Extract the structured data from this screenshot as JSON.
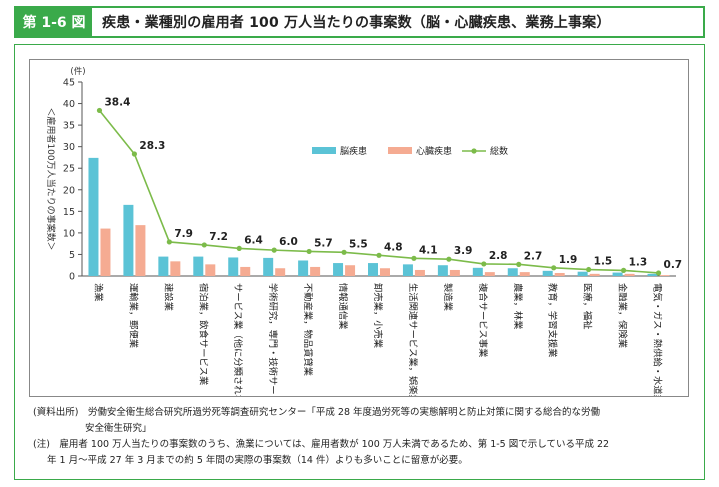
{
  "header": {
    "figure_number": "第 1-6 図",
    "title": "疾患・業種別の雇用者 100 万人当たりの事案数（脳・心臓疾患、業務上事案）"
  },
  "colors": {
    "accent": "#3aaa4a",
    "brain": "#5bc3d6",
    "heart": "#f5ab92",
    "total": "#7cbb4a"
  },
  "chart_data": {
    "type": "bar",
    "unit_label": "(件)",
    "ylabel": "＜雇用者100万人当たりの事案数＞",
    "ylim": [
      0,
      45
    ],
    "yticks": [
      0,
      5,
      10,
      15,
      20,
      25,
      30,
      35,
      40,
      45
    ],
    "grid": false,
    "legend_position": "top-center",
    "categories": [
      "漁業",
      "運輸業，郵便業",
      "建設業",
      "宿泊業，飲食サービス業",
      "サービス業（他に分類されないもの）",
      "学術研究，専門・技術サービス業",
      "不動産業，物品賃貸業",
      "情報通信業",
      "卸売業，小売業",
      "生活関連サービス業，娯楽業",
      "製造業",
      "複合サービス事業",
      "農業，林業",
      "教育，学習支援業",
      "医療，福祉",
      "金融業，保険業",
      "電気・ガス・熱供給・水道業"
    ],
    "series": [
      {
        "name": "脳疾患",
        "type": "bar",
        "values": [
          27.4,
          16.5,
          4.5,
          4.5,
          4.3,
          4.2,
          3.6,
          3.0,
          3.0,
          2.7,
          2.5,
          1.9,
          1.8,
          1.2,
          1.0,
          0.8,
          0.5
        ]
      },
      {
        "name": "心臓疾患",
        "type": "bar",
        "values": [
          11.0,
          11.8,
          3.4,
          2.7,
          2.1,
          1.8,
          2.1,
          2.5,
          1.8,
          1.4,
          1.4,
          0.9,
          0.9,
          0.7,
          0.5,
          0.5,
          0.2
        ]
      },
      {
        "name": "総数",
        "type": "line",
        "values": [
          38.4,
          28.3,
          7.9,
          7.2,
          6.4,
          6.0,
          5.7,
          5.5,
          4.8,
          4.1,
          3.9,
          2.8,
          2.7,
          1.9,
          1.5,
          1.3,
          0.7
        ]
      }
    ],
    "total_labels": [
      "38.4",
      "28.3",
      "7.9",
      "7.2",
      "6.4",
      "6.0",
      "5.7",
      "5.5",
      "4.8",
      "4.1",
      "3.9",
      "2.8",
      "2.7",
      "1.9",
      "1.5",
      "1.3",
      "0.7"
    ]
  },
  "notes": {
    "source_line1": "(資料出所)　労働安全衛生総合研究所過労死等調査研究センター「平成 28 年度過労死等の実態解明と防止対策に関する総合的な労働",
    "source_line2": "安全衛生研究」",
    "note_line1": "(注)　雇用者 100 万人当たりの事案数のうち、漁業については、雇用者数が 100 万人未満であるため、第 1-5 図で示している平成 22",
    "note_line2": "年 1 月～平成 27 年 3 月までの約 5 年間の実際の事案数（14 件）よりも多いことに留意が必要。"
  }
}
